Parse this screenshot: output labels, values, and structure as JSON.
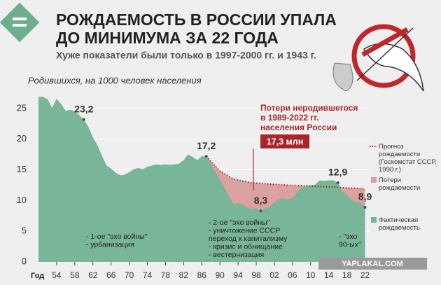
{
  "chart_data": {
    "type": "area",
    "title": [
      "РОЖДАЕМОСТЬ В РОССИИ УПАЛА",
      "ДО МИНИМУМА ЗА 22 ГОДА"
    ],
    "subtitle": "Хуже показатели были только в 1997-2000 гг. и 1943 г.",
    "y_label": "Родившихся, на 1000 человек населения",
    "x_label": "Год",
    "xlim": [
      1950,
      2023
    ],
    "ylim": [
      0,
      27.5
    ],
    "yticks": [
      0,
      5,
      10,
      15,
      20,
      25
    ],
    "xticks": [
      {
        "value": 1954,
        "label": "54"
      },
      {
        "value": 1958,
        "label": "58"
      },
      {
        "value": 1962,
        "label": "62"
      },
      {
        "value": 1966,
        "label": "66"
      },
      {
        "value": 1970,
        "label": "70"
      },
      {
        "value": 1974,
        "label": "74"
      },
      {
        "value": 1978,
        "label": "78"
      },
      {
        "value": 1982,
        "label": "82"
      },
      {
        "value": 1986,
        "label": "86"
      },
      {
        "value": 1990,
        "label": "90"
      },
      {
        "value": 1994,
        "label": "94"
      },
      {
        "value": 1998,
        "label": "98"
      },
      {
        "value": 2002,
        "label": "02"
      },
      {
        "value": 2006,
        "label": "06"
      },
      {
        "value": 2010,
        "label": "10"
      },
      {
        "value": 2014,
        "label": "14"
      },
      {
        "value": 2018,
        "label": "18"
      },
      {
        "value": 2022,
        "label": "22"
      }
    ],
    "grid": true,
    "x": [
      1950,
      1951,
      1952,
      1953,
      1954,
      1955,
      1956,
      1957,
      1958,
      1959,
      1960,
      1961,
      1962,
      1963,
      1964,
      1965,
      1966,
      1967,
      1968,
      1969,
      1970,
      1971,
      1972,
      1973,
      1974,
      1975,
      1976,
      1977,
      1978,
      1979,
      1980,
      1981,
      1982,
      1983,
      1984,
      1985,
      1986,
      1987,
      1988,
      1989,
      1990,
      1991,
      1992,
      1993,
      1994,
      1995,
      1996,
      1997,
      1998,
      1999,
      2000,
      2001,
      2002,
      2003,
      2004,
      2005,
      2006,
      2007,
      2008,
      2009,
      2010,
      2011,
      2012,
      2013,
      2014,
      2015,
      2016,
      2017,
      2018,
      2019,
      2020,
      2021,
      2022
    ],
    "series": [
      {
        "name": "Фактическая рождаемость",
        "color": "#79b598",
        "values": [
          26.9,
          26.9,
          26.5,
          25.1,
          26.6,
          25.7,
          24.6,
          24.8,
          24.5,
          23.9,
          23.2,
          22.0,
          20.3,
          19.0,
          17.3,
          15.7,
          15.2,
          14.5,
          14.1,
          14.2,
          14.6,
          15.1,
          15.3,
          15.1,
          15.5,
          15.7,
          15.9,
          15.8,
          15.9,
          15.8,
          15.9,
          16.0,
          16.6,
          17.5,
          17.1,
          16.6,
          17.2,
          17.2,
          16.0,
          14.6,
          13.4,
          12.1,
          10.7,
          9.4,
          9.6,
          9.3,
          8.9,
          8.6,
          8.8,
          8.3,
          8.7,
          9.0,
          9.7,
          10.2,
          10.4,
          10.2,
          10.4,
          11.3,
          12.1,
          12.4,
          12.5,
          12.6,
          13.3,
          13.2,
          13.3,
          13.3,
          12.9,
          11.5,
          10.9,
          10.1,
          9.8,
          9.6,
          8.9
        ],
        "value_labels": [
          null,
          null,
          null,
          null,
          null,
          null,
          null,
          null,
          null,
          null,
          "23,2",
          null,
          null,
          null,
          null,
          null,
          null,
          null,
          null,
          null,
          null,
          null,
          null,
          null,
          null,
          null,
          null,
          null,
          null,
          null,
          null,
          null,
          null,
          null,
          null,
          null,
          null,
          "17,2",
          null,
          null,
          null,
          null,
          null,
          null,
          null,
          null,
          null,
          null,
          null,
          "8,3",
          null,
          null,
          null,
          null,
          null,
          null,
          null,
          null,
          null,
          null,
          null,
          null,
          null,
          null,
          null,
          null,
          "12,9",
          null,
          null,
          null,
          null,
          null,
          "8,9"
        ]
      },
      {
        "name": "Прогноз рождаемости (Госкомстат СССР, 1990 г.)",
        "color": "#a8262b",
        "x": [
          1987,
          1990,
          1993,
          1997,
          2005,
          2015,
          2022
        ],
        "values": [
          17.2,
          14.8,
          13.5,
          12.9,
          12.5,
          12.2,
          11.9
        ]
      }
    ],
    "loss_area": {
      "name": "Потери рождаемости",
      "color": "#dba1a1"
    },
    "callout": {
      "lines": [
        "Потери неродившегося",
        "в 1989-2022 гг.",
        "населения России"
      ],
      "total": "17,3 млн"
    },
    "annotations": [
      {
        "lines": [
          "- 1-ое \"эхо войны\"",
          "- урбанизация"
        ]
      },
      {
        "lines": [
          "- 2-ое \"эхо войны\"",
          "- уничтожение СССР",
          "  переход к капитализму",
          "- кризис и обнищание",
          "- вестернизация"
        ]
      },
      {
        "lines": [
          "- \"эхо",
          "90-ых\""
        ]
      }
    ],
    "watermark": "YAPLAKAL.COM"
  }
}
